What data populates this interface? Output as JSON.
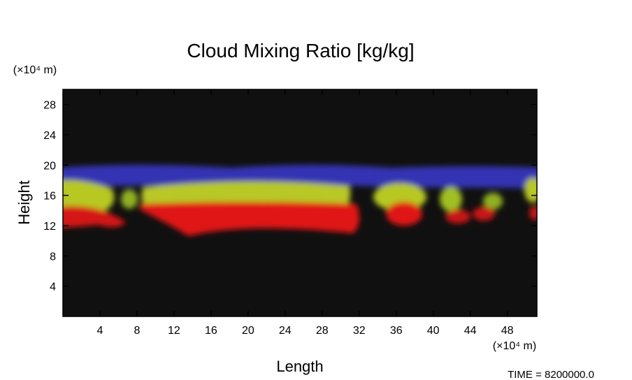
{
  "chart_data": {
    "type": "field",
    "title": "Cloud Mixing Ratio [kg/kg]",
    "xlabel": "Length",
    "ylabel": "Height",
    "xunit": "(×10⁴ m)",
    "yunit": "(×10⁴ m)",
    "annotation": "TIME = 8200000.0",
    "xlim": [
      0,
      51.2
    ],
    "ylim": [
      0,
      30
    ],
    "xticks": [
      4,
      8,
      12,
      16,
      20,
      24,
      28,
      32,
      36,
      40,
      44,
      48
    ],
    "yticks": [
      4,
      8,
      12,
      16,
      20,
      24,
      28
    ],
    "background": "#101010"
  }
}
